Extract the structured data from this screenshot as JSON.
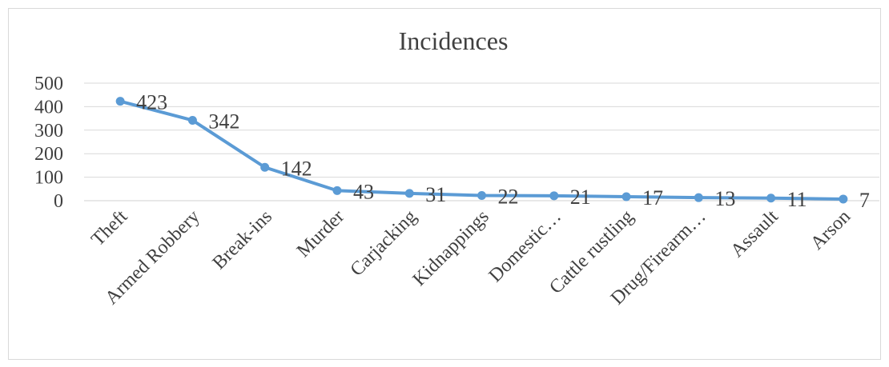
{
  "chart_data": {
    "type": "line",
    "title": "Incidences",
    "xlabel": "",
    "ylabel": "",
    "categories": [
      "Theft",
      "Armed Robbery",
      "Break-ins",
      "Murder",
      "Carjacking",
      "Kidnappings",
      "Domestic…",
      "Cattle rustling",
      "Drug/Firearm…",
      "Assault",
      "Arson"
    ],
    "series": [
      {
        "values": [
          423,
          342,
          142,
          43,
          31,
          22,
          21,
          17,
          13,
          11,
          7
        ]
      }
    ],
    "ylim": [
      0,
      500
    ],
    "yticks": [
      0,
      100,
      200,
      300,
      400,
      500
    ],
    "grid": true,
    "legend": "none",
    "data_labels": true,
    "line_color": "#5b9bd5"
  }
}
